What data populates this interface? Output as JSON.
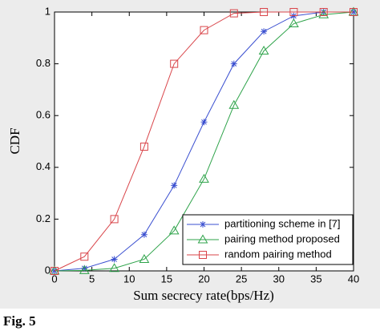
{
  "chart_data": {
    "type": "line",
    "x_label": "Sum secrecy rate(bps/Hz)",
    "y_label": "CDF",
    "caption": "Fig. 5",
    "x": [
      0,
      4,
      8,
      12,
      16,
      20,
      24,
      28,
      32,
      36,
      40
    ],
    "series": [
      {
        "name": "partitioning scheme in [7]",
        "color": "#3a4fd0",
        "marker": "star",
        "values": [
          0,
          0.01,
          0.045,
          0.14,
          0.33,
          0.575,
          0.8,
          0.925,
          0.985,
          1,
          1
        ]
      },
      {
        "name": "pairing method proposed",
        "color": "#2ea34a",
        "marker": "triangle",
        "values": [
          0,
          0.002,
          0.01,
          0.045,
          0.155,
          0.355,
          0.64,
          0.85,
          0.955,
          0.99,
          1
        ]
      },
      {
        "name": "random pairing method",
        "color": "#d9454a",
        "marker": "square",
        "values": [
          0,
          0.055,
          0.2,
          0.48,
          0.8,
          0.93,
          0.995,
          1,
          1,
          1,
          1
        ]
      }
    ],
    "xlim": [
      0,
      40
    ],
    "xticks": [
      0,
      5,
      10,
      15,
      20,
      25,
      30,
      35,
      40
    ],
    "ylim": [
      0,
      1
    ],
    "yticks": [
      0,
      0.2,
      0.4,
      0.6,
      0.8,
      1
    ],
    "grid": false,
    "legend": "lower right"
  }
}
